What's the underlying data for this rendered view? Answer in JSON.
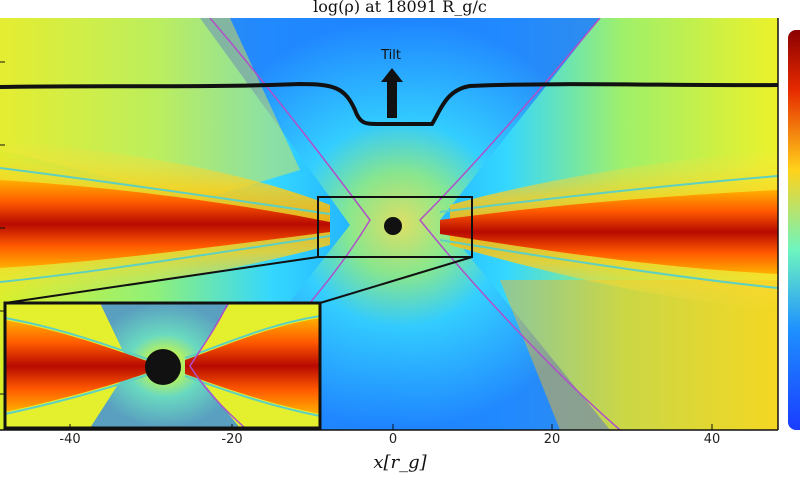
{
  "figure": {
    "title": "log(ρ) at 18091 R_g/c",
    "annotation": "Tilt",
    "xlabel": "x[r_g]"
  },
  "chart_data": {
    "type": "heatmap",
    "title": "log(ρ) at 18091 R_g/c",
    "xlabel": "x[r_g]",
    "ylabel": "",
    "xlim": [
      -50,
      50
    ],
    "xticks": [
      "-40",
      "-20",
      "0",
      "20",
      "40"
    ],
    "grid": false,
    "annotations": [
      "Tilt"
    ],
    "colormap": [
      "#1a3cff",
      "#1e90ff",
      "#2fd0ff",
      "#6ef5c0",
      "#d8f24a",
      "#ffd21a",
      "#ff8a00",
      "#e62a00",
      "#8b0000"
    ],
    "line_colors": {
      "tilt_profile": "#111111",
      "density_contour": "#5fd0c0",
      "jet_boundary": "#b050c8"
    }
  }
}
